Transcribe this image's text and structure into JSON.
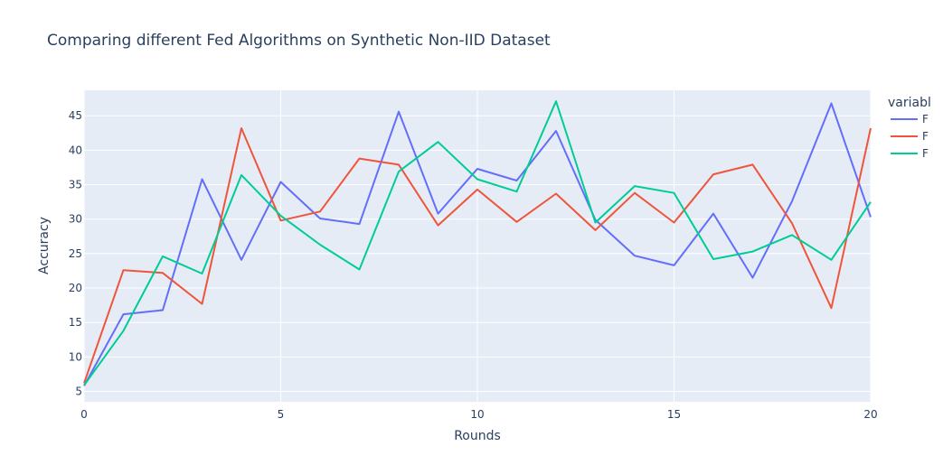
{
  "chart_data": {
    "type": "line",
    "title": "Comparing different Fed Algorithms on Synthetic Non-IID Dataset",
    "xlabel": "Rounds",
    "ylabel": "Accuracy",
    "xlim": [
      0,
      20
    ],
    "ylim": [
      3.5,
      48.7
    ],
    "x_ticks": [
      0,
      5,
      10,
      15,
      20
    ],
    "y_ticks": [
      5,
      10,
      15,
      20,
      25,
      30,
      35,
      40,
      45
    ],
    "grid": true,
    "legend_title": "variabl",
    "legend_position": "right",
    "x": [
      0,
      1,
      2,
      3,
      4,
      5,
      6,
      7,
      8,
      9,
      10,
      11,
      12,
      13,
      14,
      15,
      16,
      17,
      18,
      19,
      20
    ],
    "series": [
      {
        "name": "F",
        "color": "#636efa",
        "values": [
          5.8,
          16.2,
          16.8,
          35.8,
          24.1,
          35.4,
          30.1,
          29.3,
          45.6,
          30.8,
          37.3,
          35.6,
          42.8,
          29.9,
          24.7,
          23.3,
          30.8,
          21.5,
          32.6,
          46.8,
          30.3
        ]
      },
      {
        "name": "F",
        "color": "#ef553b",
        "values": [
          6.2,
          22.6,
          22.2,
          17.7,
          43.2,
          29.8,
          31.1,
          38.8,
          37.9,
          29.1,
          34.3,
          29.6,
          33.7,
          28.4,
          33.8,
          29.5,
          36.5,
          37.9,
          29.4,
          17.1,
          43.2
        ]
      },
      {
        "name": "F",
        "color": "#00cc96",
        "values": [
          5.9,
          13.8,
          24.6,
          22.1,
          36.4,
          30.5,
          26.3,
          22.7,
          36.9,
          41.2,
          35.8,
          34.0,
          47.1,
          29.5,
          34.8,
          33.8,
          24.2,
          25.3,
          27.7,
          24.1,
          32.5
        ]
      }
    ]
  }
}
